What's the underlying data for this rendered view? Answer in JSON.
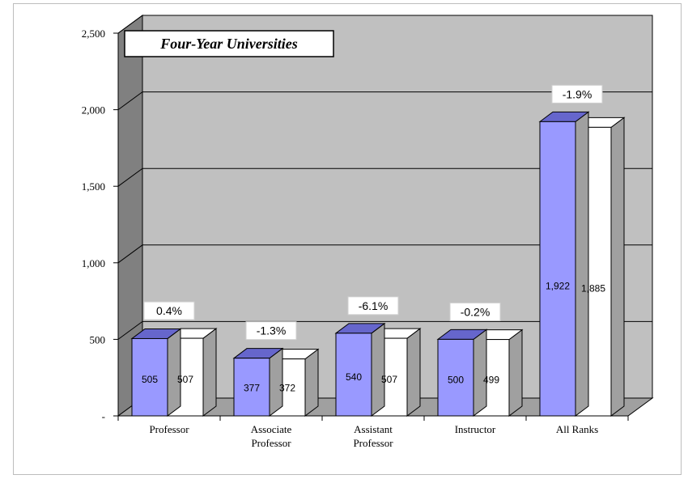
{
  "chart_data": {
    "type": "bar",
    "title": "Four-Year Universities",
    "categories": [
      [
        "Professor"
      ],
      [
        "Associate",
        "Professor"
      ],
      [
        "Assistant",
        "Professor"
      ],
      [
        "Instructor"
      ],
      [
        "All Ranks"
      ]
    ],
    "series": [
      {
        "values": [
          505,
          377,
          540,
          500,
          1922
        ],
        "color": "#9999ff"
      },
      {
        "values": [
          507,
          372,
          507,
          499,
          1885
        ],
        "color": "#ffffff"
      }
    ],
    "value_labels": [
      [
        "505",
        "377",
        "540",
        "500",
        "1,922"
      ],
      [
        "507",
        "372",
        "507",
        "499",
        "1,885"
      ]
    ],
    "percent_change": [
      "0.4%",
      "-1.3%",
      "-6.1%",
      "-0.2%",
      "-1.9%"
    ],
    "y_ticks": [
      "-",
      "500",
      "1,000",
      "1,500",
      "2,000",
      "2,500"
    ],
    "y_tick_values": [
      0,
      500,
      1000,
      1500,
      2000,
      2500
    ],
    "ylim": [
      0,
      2500
    ],
    "grid": true,
    "style": "3d-clustered-column",
    "wall_color": "#c0c0c0",
    "side_wall_color": "#808080",
    "floor_color": "#a0a0a0",
    "bar_top_color": "#6666cc",
    "bar_side_color": "#a0a0a0"
  }
}
